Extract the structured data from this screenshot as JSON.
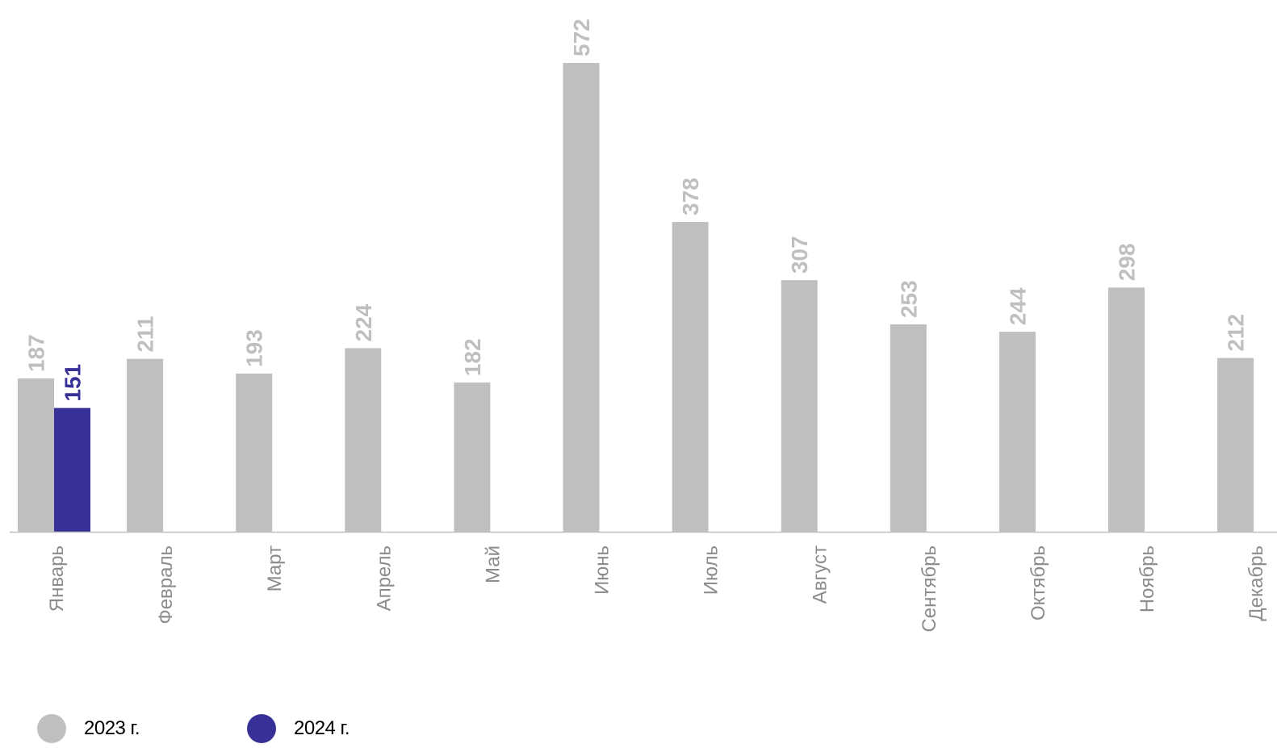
{
  "chart_data": {
    "type": "bar",
    "categories": [
      "Январь",
      "Февраль",
      "Март",
      "Апрель",
      "Май",
      "Июнь",
      "Июль",
      "Август",
      "Сентябрь",
      "Октябрь",
      "Ноябрь",
      "Декабрь"
    ],
    "series": [
      {
        "name": "2023 г.",
        "color": "#bfbfbf",
        "label_color": "#bfbfbf",
        "values": [
          187,
          211,
          193,
          224,
          182,
          572,
          378,
          307,
          253,
          244,
          298,
          212
        ]
      },
      {
        "name": "2024 г.",
        "color": "#373197",
        "label_color": "#373197",
        "values": [
          151,
          null,
          null,
          null,
          null,
          null,
          null,
          null,
          null,
          null,
          null,
          null
        ]
      }
    ],
    "title": "",
    "xlabel": "",
    "ylabel": "",
    "ylim": [
      0,
      650
    ],
    "grid": false,
    "legend_position": "bottom-left",
    "data_labels": true,
    "baseline_color": "#bfbfbf"
  },
  "legend": {
    "items": [
      {
        "label": "2023 г.",
        "color": "#bfbfbf"
      },
      {
        "label": "2024 г.",
        "color": "#373197"
      }
    ]
  }
}
